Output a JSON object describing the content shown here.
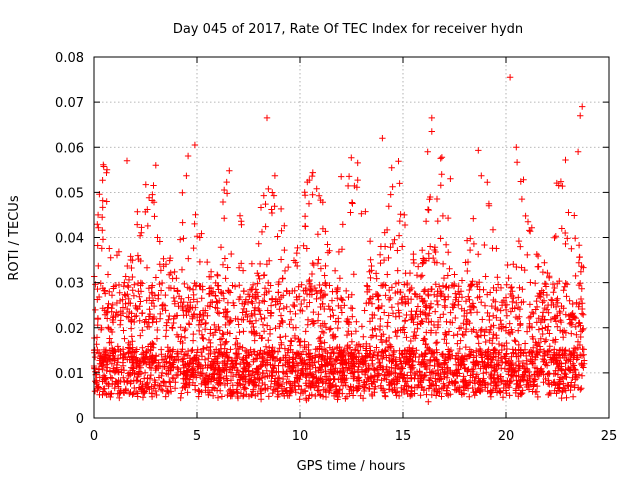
{
  "chart_data": {
    "type": "scatter",
    "title": "Day 045 of 2017, Rate Of TEC Index for receiver hydn",
    "xlabel": "GPS time / hours",
    "ylabel": "ROTI / TECUs",
    "xlim": [
      0,
      25
    ],
    "ylim": [
      0,
      0.08
    ],
    "xticks": [
      0,
      5,
      10,
      15,
      20,
      25
    ],
    "yticks": [
      0,
      0.01,
      0.02,
      0.03,
      0.04,
      0.05,
      0.06,
      0.07,
      0.08
    ],
    "grid": true,
    "marker": "+",
    "color": "#ff0000",
    "x_coverage": [
      0,
      23.8
    ],
    "baseline_range": [
      0.005,
      0.015
    ],
    "notable_points": [
      {
        "x": 20.2,
        "y": 0.0755
      },
      {
        "x": 23.7,
        "y": 0.069
      },
      {
        "x": 23.6,
        "y": 0.067
      },
      {
        "x": 8.4,
        "y": 0.0665
      },
      {
        "x": 16.4,
        "y": 0.0665
      },
      {
        "x": 16.4,
        "y": 0.0635
      },
      {
        "x": 14.0,
        "y": 0.062
      },
      {
        "x": 4.9,
        "y": 0.0605
      },
      {
        "x": 20.5,
        "y": 0.06
      },
      {
        "x": 23.5,
        "y": 0.059
      },
      {
        "x": 16.2,
        "y": 0.059
      },
      {
        "x": 1.6,
        "y": 0.057
      },
      {
        "x": 3.0,
        "y": 0.056
      },
      {
        "x": 12.0,
        "y": 0.0535
      },
      {
        "x": 17.3,
        "y": 0.053
      },
      {
        "x": 0.2,
        "y": 0.045
      },
      {
        "x": 0.4,
        "y": 0.0445
      }
    ]
  }
}
